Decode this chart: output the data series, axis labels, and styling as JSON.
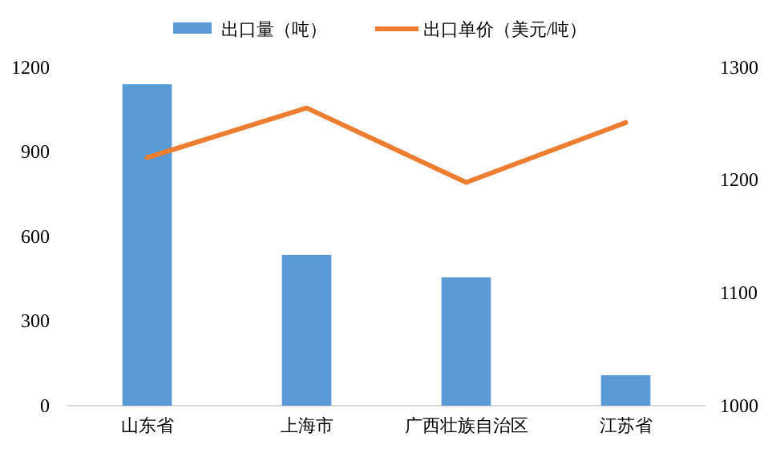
{
  "chart_data": {
    "type": "bar",
    "categories": [
      "山东省",
      "上海市",
      "广西壮族自治区",
      "江苏省"
    ],
    "series": [
      {
        "name": "出口量（吨）",
        "color": "#5b9bd5",
        "values": [
          1140,
          535,
          455,
          108
        ]
      },
      {
        "name": "出口单价（美元/吨）",
        "type": "line",
        "axis": "y2",
        "color": "#ed7d31",
        "values": [
          1220,
          1264,
          1198,
          1251
        ]
      }
    ],
    "ylim": [
      0,
      1200
    ],
    "yticks": [
      0,
      300,
      600,
      900,
      1200
    ],
    "y2lim": [
      1000,
      1300
    ],
    "y2ticks": [
      1000,
      1100,
      1200,
      1300
    ],
    "legend": "top",
    "grid": false
  }
}
